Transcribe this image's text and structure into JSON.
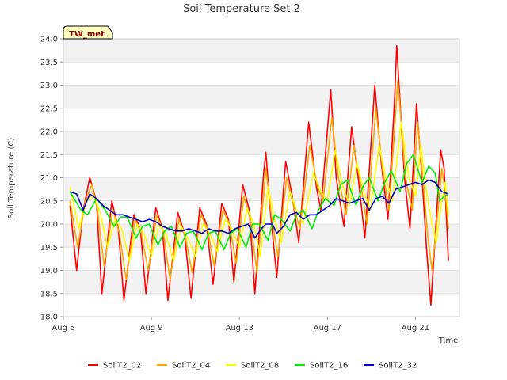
{
  "chart_data": {
    "type": "line",
    "title": "Soil Temperature Set 2",
    "xlabel": "Time",
    "ylabel": "Soil Temperature (C)",
    "station_badge": "TW_met",
    "x_unit": "days",
    "x_ticks": [
      {
        "label": "Aug 5",
        "value": 5
      },
      {
        "label": "Aug 9",
        "value": 9
      },
      {
        "label": "Aug 13",
        "value": 13
      },
      {
        "label": "Aug 17",
        "value": 17
      },
      {
        "label": "Aug 21",
        "value": 21
      }
    ],
    "xlim": [
      5,
      23
    ],
    "ylim": [
      18.0,
      24.0
    ],
    "y_ticks": [
      "18.0",
      "18.5",
      "19.0",
      "19.5",
      "20.0",
      "20.5",
      "21.0",
      "21.5",
      "22.0",
      "22.5",
      "23.0",
      "23.5",
      "24.0"
    ],
    "grid": "horizontal bands",
    "legend_position": "bottom",
    "series": [
      {
        "name": "SoilT2_02",
        "color": "#ff0000",
        "points": [
          [
            5.3,
            20.4
          ],
          [
            5.6,
            19.0
          ],
          [
            5.9,
            20.3
          ],
          [
            6.2,
            21.0
          ],
          [
            6.5,
            20.5
          ],
          [
            6.75,
            18.5
          ],
          [
            7.2,
            20.5
          ],
          [
            7.5,
            19.9
          ],
          [
            7.75,
            18.35
          ],
          [
            8.2,
            20.2
          ],
          [
            8.5,
            19.9
          ],
          [
            8.75,
            18.5
          ],
          [
            9.2,
            20.35
          ],
          [
            9.5,
            19.9
          ],
          [
            9.75,
            18.35
          ],
          [
            10.2,
            20.25
          ],
          [
            10.5,
            19.8
          ],
          [
            10.8,
            18.4
          ],
          [
            11.2,
            20.35
          ],
          [
            11.5,
            20.0
          ],
          [
            11.8,
            18.7
          ],
          [
            12.2,
            20.45
          ],
          [
            12.5,
            20.1
          ],
          [
            12.75,
            18.75
          ],
          [
            13.15,
            20.85
          ],
          [
            13.45,
            20.3
          ],
          [
            13.7,
            18.5
          ],
          [
            14.1,
            21.1
          ],
          [
            14.2,
            21.55
          ],
          [
            14.4,
            20.3
          ],
          [
            14.7,
            18.85
          ],
          [
            15.1,
            21.35
          ],
          [
            15.4,
            20.6
          ],
          [
            15.7,
            19.6
          ],
          [
            16.15,
            22.2
          ],
          [
            16.5,
            20.8
          ],
          [
            16.7,
            20.3
          ],
          [
            17.15,
            22.9
          ],
          [
            17.4,
            21.0
          ],
          [
            17.75,
            19.95
          ],
          [
            18.1,
            22.1
          ],
          [
            18.4,
            21.0
          ],
          [
            18.7,
            19.7
          ],
          [
            19.15,
            23.0
          ],
          [
            19.45,
            21.3
          ],
          [
            19.75,
            20.1
          ],
          [
            20.05,
            22.7
          ],
          [
            20.15,
            23.85
          ],
          [
            20.5,
            21.0
          ],
          [
            20.75,
            19.9
          ],
          [
            21.05,
            22.6
          ],
          [
            21.3,
            21.0
          ],
          [
            21.5,
            19.5
          ],
          [
            21.7,
            18.25
          ],
          [
            22.0,
            20.5
          ],
          [
            22.15,
            21.6
          ],
          [
            22.3,
            21.2
          ],
          [
            22.5,
            19.2
          ]
        ]
      },
      {
        "name": "SoilT2_04",
        "color": "#ffa500",
        "points": [
          [
            5.3,
            20.5
          ],
          [
            5.65,
            19.5
          ],
          [
            6.0,
            20.5
          ],
          [
            6.3,
            20.85
          ],
          [
            6.55,
            20.3
          ],
          [
            6.85,
            19.1
          ],
          [
            7.25,
            20.3
          ],
          [
            7.55,
            19.8
          ],
          [
            7.85,
            18.8
          ],
          [
            8.25,
            20.1
          ],
          [
            8.55,
            19.8
          ],
          [
            8.85,
            19.0
          ],
          [
            9.25,
            20.2
          ],
          [
            9.55,
            19.8
          ],
          [
            9.85,
            18.8
          ],
          [
            10.25,
            20.1
          ],
          [
            10.55,
            19.7
          ],
          [
            10.85,
            18.95
          ],
          [
            11.25,
            20.2
          ],
          [
            11.55,
            19.9
          ],
          [
            11.85,
            19.1
          ],
          [
            12.25,
            20.3
          ],
          [
            12.55,
            20.0
          ],
          [
            12.85,
            19.15
          ],
          [
            13.2,
            20.6
          ],
          [
            13.5,
            20.1
          ],
          [
            13.8,
            18.95
          ],
          [
            14.2,
            21.2
          ],
          [
            14.45,
            20.2
          ],
          [
            14.75,
            19.3
          ],
          [
            15.15,
            21.0
          ],
          [
            15.45,
            20.4
          ],
          [
            15.75,
            19.9
          ],
          [
            16.2,
            21.7
          ],
          [
            16.55,
            20.8
          ],
          [
            16.8,
            20.5
          ],
          [
            17.2,
            22.3
          ],
          [
            17.5,
            21.0
          ],
          [
            17.85,
            20.2
          ],
          [
            18.2,
            21.7
          ],
          [
            18.5,
            20.9
          ],
          [
            18.8,
            20.0
          ],
          [
            19.2,
            22.5
          ],
          [
            19.5,
            21.2
          ],
          [
            19.8,
            20.3
          ],
          [
            20.2,
            23.1
          ],
          [
            20.55,
            21.0
          ],
          [
            20.85,
            20.3
          ],
          [
            21.1,
            22.2
          ],
          [
            21.35,
            20.9
          ],
          [
            21.55,
            19.8
          ],
          [
            21.75,
            19.0
          ],
          [
            22.05,
            20.4
          ],
          [
            22.2,
            21.2
          ],
          [
            22.35,
            20.7
          ],
          [
            22.5,
            19.9
          ]
        ]
      },
      {
        "name": "SoilT2_08",
        "color": "#ffff00",
        "points": [
          [
            5.3,
            20.8
          ],
          [
            5.7,
            19.9
          ],
          [
            6.05,
            20.5
          ],
          [
            6.4,
            20.6
          ],
          [
            6.7,
            20.2
          ],
          [
            7.0,
            19.5
          ],
          [
            7.35,
            20.1
          ],
          [
            7.65,
            19.9
          ],
          [
            8.0,
            19.2
          ],
          [
            8.35,
            20.0
          ],
          [
            8.65,
            19.8
          ],
          [
            9.0,
            19.3
          ],
          [
            9.35,
            20.0
          ],
          [
            9.65,
            19.8
          ],
          [
            10.0,
            19.2
          ],
          [
            10.35,
            19.95
          ],
          [
            10.65,
            19.7
          ],
          [
            11.0,
            19.3
          ],
          [
            11.35,
            20.0
          ],
          [
            11.65,
            19.8
          ],
          [
            12.0,
            19.4
          ],
          [
            12.35,
            20.1
          ],
          [
            12.65,
            19.9
          ],
          [
            13.0,
            19.5
          ],
          [
            13.35,
            20.35
          ],
          [
            13.65,
            20.0
          ],
          [
            13.95,
            19.3
          ],
          [
            14.3,
            20.8
          ],
          [
            14.6,
            20.1
          ],
          [
            14.9,
            19.6
          ],
          [
            15.3,
            20.7
          ],
          [
            15.6,
            20.3
          ],
          [
            15.9,
            20.0
          ],
          [
            16.35,
            21.1
          ],
          [
            16.7,
            20.7
          ],
          [
            17.0,
            20.5
          ],
          [
            17.35,
            21.6
          ],
          [
            17.65,
            20.9
          ],
          [
            18.0,
            20.4
          ],
          [
            18.35,
            21.3
          ],
          [
            18.65,
            20.7
          ],
          [
            18.95,
            20.3
          ],
          [
            19.35,
            21.7
          ],
          [
            19.65,
            21.0
          ],
          [
            19.95,
            20.5
          ],
          [
            20.35,
            22.2
          ],
          [
            20.7,
            21.0
          ],
          [
            21.0,
            20.6
          ],
          [
            21.25,
            21.7
          ],
          [
            21.5,
            20.7
          ],
          [
            21.75,
            20.0
          ],
          [
            21.95,
            19.6
          ],
          [
            22.2,
            20.5
          ],
          [
            22.35,
            20.9
          ],
          [
            22.5,
            20.2
          ]
        ]
      },
      {
        "name": "SoilT2_16",
        "color": "#00ee00",
        "points": [
          [
            5.3,
            20.7
          ],
          [
            5.8,
            20.3
          ],
          [
            6.1,
            20.2
          ],
          [
            6.5,
            20.55
          ],
          [
            6.9,
            20.3
          ],
          [
            7.3,
            19.95
          ],
          [
            7.6,
            20.15
          ],
          [
            7.9,
            20.15
          ],
          [
            8.3,
            19.7
          ],
          [
            8.6,
            19.95
          ],
          [
            8.9,
            20.0
          ],
          [
            9.3,
            19.55
          ],
          [
            9.6,
            19.85
          ],
          [
            9.9,
            19.95
          ],
          [
            10.3,
            19.5
          ],
          [
            10.6,
            19.8
          ],
          [
            10.9,
            19.85
          ],
          [
            11.3,
            19.45
          ],
          [
            11.6,
            19.8
          ],
          [
            11.9,
            19.85
          ],
          [
            12.3,
            19.45
          ],
          [
            12.6,
            19.8
          ],
          [
            12.9,
            19.9
          ],
          [
            13.3,
            19.5
          ],
          [
            13.6,
            20.0
          ],
          [
            13.9,
            20.0
          ],
          [
            14.3,
            19.65
          ],
          [
            14.6,
            20.2
          ],
          [
            14.9,
            20.1
          ],
          [
            15.3,
            19.85
          ],
          [
            15.6,
            20.2
          ],
          [
            15.9,
            20.3
          ],
          [
            16.3,
            19.9
          ],
          [
            16.6,
            20.3
          ],
          [
            16.9,
            20.55
          ],
          [
            17.3,
            20.4
          ],
          [
            17.6,
            20.85
          ],
          [
            17.9,
            20.95
          ],
          [
            18.3,
            20.4
          ],
          [
            18.6,
            20.8
          ],
          [
            18.9,
            21.0
          ],
          [
            19.3,
            20.5
          ],
          [
            19.6,
            20.9
          ],
          [
            19.9,
            21.15
          ],
          [
            20.3,
            20.7
          ],
          [
            20.6,
            21.3
          ],
          [
            20.9,
            21.5
          ],
          [
            21.3,
            20.9
          ],
          [
            21.6,
            21.25
          ],
          [
            21.9,
            21.1
          ],
          [
            22.1,
            20.5
          ],
          [
            22.3,
            20.6
          ],
          [
            22.5,
            20.65
          ]
        ]
      },
      {
        "name": "SoilT2_32",
        "color": "#0000cc",
        "points": [
          [
            5.3,
            20.7
          ],
          [
            5.6,
            20.65
          ],
          [
            5.9,
            20.3
          ],
          [
            6.2,
            20.65
          ],
          [
            6.5,
            20.55
          ],
          [
            6.8,
            20.4
          ],
          [
            7.1,
            20.3
          ],
          [
            7.4,
            20.2
          ],
          [
            7.7,
            20.2
          ],
          [
            8.0,
            20.15
          ],
          [
            8.3,
            20.1
          ],
          [
            8.6,
            20.05
          ],
          [
            8.9,
            20.1
          ],
          [
            9.2,
            20.05
          ],
          [
            9.5,
            19.95
          ],
          [
            9.8,
            19.9
          ],
          [
            10.1,
            19.85
          ],
          [
            10.4,
            19.85
          ],
          [
            10.7,
            19.9
          ],
          [
            11.0,
            19.85
          ],
          [
            11.3,
            19.8
          ],
          [
            11.6,
            19.9
          ],
          [
            11.9,
            19.85
          ],
          [
            12.2,
            19.85
          ],
          [
            12.5,
            19.8
          ],
          [
            12.8,
            19.9
          ],
          [
            13.1,
            19.95
          ],
          [
            13.4,
            20.0
          ],
          [
            13.7,
            19.7
          ],
          [
            14.0,
            19.9
          ],
          [
            14.2,
            20.0
          ],
          [
            14.5,
            20.0
          ],
          [
            14.7,
            19.8
          ],
          [
            15.0,
            19.95
          ],
          [
            15.3,
            20.2
          ],
          [
            15.6,
            20.25
          ],
          [
            15.9,
            20.1
          ],
          [
            16.2,
            20.2
          ],
          [
            16.5,
            20.2
          ],
          [
            16.8,
            20.3
          ],
          [
            17.1,
            20.4
          ],
          [
            17.4,
            20.55
          ],
          [
            17.7,
            20.5
          ],
          [
            18.0,
            20.45
          ],
          [
            18.3,
            20.5
          ],
          [
            18.6,
            20.55
          ],
          [
            18.9,
            20.3
          ],
          [
            19.2,
            20.55
          ],
          [
            19.5,
            20.6
          ],
          [
            19.8,
            20.45
          ],
          [
            20.1,
            20.75
          ],
          [
            20.4,
            20.8
          ],
          [
            20.7,
            20.85
          ],
          [
            21.0,
            20.9
          ],
          [
            21.3,
            20.85
          ],
          [
            21.6,
            20.95
          ],
          [
            21.9,
            20.9
          ],
          [
            22.2,
            20.7
          ],
          [
            22.5,
            20.65
          ]
        ]
      }
    ]
  }
}
